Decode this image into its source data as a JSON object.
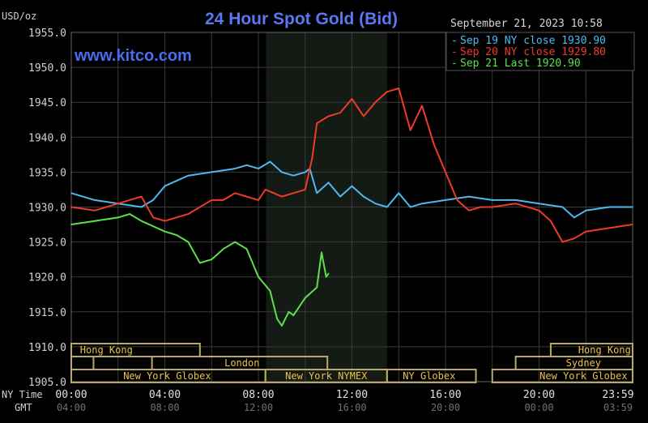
{
  "chart_data": {
    "type": "line",
    "title": "24 Hour Spot Gold (Bid)",
    "watermark": "www.kitco.com",
    "ylabel": "USD/oz",
    "timestamp": "September 21, 2023 10:58",
    "ylim": [
      1905,
      1955
    ],
    "xlim": [
      0,
      24
    ],
    "yticks": [
      "1955.0",
      "1950.0",
      "1945.0",
      "1940.0",
      "1935.0",
      "1930.0",
      "1925.0",
      "1920.0",
      "1915.0",
      "1910.0",
      "1905.0"
    ],
    "x_row_label": "NY Time",
    "x2_row_label": "GMT",
    "xticks": [
      {
        "hour": 0,
        "ny": "00:00",
        "gmt": "04:00"
      },
      {
        "hour": 4,
        "ny": "04:00",
        "gmt": "08:00"
      },
      {
        "hour": 8,
        "ny": "08:00",
        "gmt": "12:00"
      },
      {
        "hour": 12,
        "ny": "12:00",
        "gmt": "16:00"
      },
      {
        "hour": 16,
        "ny": "16:00",
        "gmt": "20:00"
      },
      {
        "hour": 20,
        "ny": "20:00",
        "gmt": "00:00"
      },
      {
        "hour": 24,
        "ny": "23:59",
        "gmt": "03:59"
      }
    ],
    "highlight_hours": [
      8.33,
      13.5
    ],
    "series": [
      {
        "name": "Sep 19 NY close 1930.90",
        "color": "#4fb8f0",
        "x": [
          0,
          1,
          2,
          3,
          3.5,
          4,
          5,
          6,
          7,
          7.5,
          8,
          8.5,
          9,
          9.5,
          10,
          10.2,
          10.5,
          11,
          11.5,
          12,
          12.5,
          13,
          13.5,
          14,
          14.5,
          15,
          16,
          17,
          18,
          19,
          20,
          21,
          21.5,
          22,
          23,
          24
        ],
        "y": [
          1932,
          1931,
          1930.5,
          1930,
          1931,
          1933,
          1934.5,
          1935,
          1935.5,
          1936,
          1935.5,
          1936.5,
          1935,
          1934.5,
          1935,
          1935.5,
          1932,
          1933.5,
          1931.5,
          1933,
          1931.5,
          1930.5,
          1930,
          1932,
          1930,
          1930.5,
          1931,
          1931.5,
          1931,
          1931,
          1930.5,
          1930,
          1928.5,
          1929.5,
          1930,
          1930
        ]
      },
      {
        "name": "Sep 20 NY close 1929.80",
        "color": "#f03a2a",
        "x": [
          0,
          1,
          2,
          3,
          3.5,
          4,
          5,
          6,
          6.5,
          7,
          8,
          8.3,
          9,
          9.5,
          10,
          10.3,
          10.5,
          11,
          11.5,
          12,
          12.5,
          13,
          13.5,
          14,
          14.5,
          15,
          15.5,
          16,
          16.5,
          17,
          17.5,
          18,
          19,
          20,
          20.5,
          21,
          21.5,
          22,
          23,
          24
        ],
        "y": [
          1930,
          1929.5,
          1930.5,
          1931.5,
          1928.5,
          1928,
          1929,
          1931,
          1931,
          1932,
          1931,
          1932.5,
          1931.5,
          1932,
          1932.5,
          1937,
          1942,
          1943,
          1943.5,
          1945.5,
          1943,
          1945,
          1946.5,
          1947,
          1941,
          1944.5,
          1939,
          1935,
          1931,
          1929.5,
          1930,
          1930,
          1930.5,
          1929.5,
          1928,
          1925,
          1925.5,
          1926.5,
          1927,
          1927.5
        ]
      },
      {
        "name": "Sep 21 Last 1920.90",
        "color": "#5ee04a",
        "x": [
          0,
          1,
          2,
          2.5,
          3,
          4,
          4.5,
          5,
          5.5,
          6,
          6.5,
          7,
          7.5,
          8,
          8.5,
          8.8,
          9,
          9.3,
          9.5,
          10,
          10.5,
          10.7,
          10.9,
          11
        ],
        "y": [
          1927.5,
          1928,
          1928.5,
          1929,
          1928,
          1926.5,
          1926,
          1925,
          1922,
          1922.5,
          1924,
          1925,
          1924,
          1920,
          1918,
          1914,
          1913,
          1915,
          1914.5,
          1917,
          1918.5,
          1923.5,
          1920,
          1920.5
        ]
      }
    ],
    "sessions": [
      {
        "label": "Hong Kong",
        "row": 0,
        "start": 0,
        "end": 5.5,
        "label_at": 1.5
      },
      {
        "label": "Hong Kong",
        "row": 0,
        "start": 20.5,
        "end": 24,
        "label_at": 22.8
      },
      {
        "label": "",
        "row": 1,
        "start": 0,
        "end": 0.95
      },
      {
        "label": "London",
        "row": 1,
        "start": 3.45,
        "end": 10.95,
        "label_at": 7.3
      },
      {
        "label": "Sydney",
        "row": 1,
        "start": 19,
        "end": 24,
        "label_at": 21.9
      },
      {
        "label": "New York Globex",
        "row": 2,
        "start": 0,
        "end": 8.3,
        "label_at": 4.1
      },
      {
        "label": "New York NYMEX",
        "row": 2,
        "start": 8.3,
        "end": 13.5,
        "label_at": 10.9
      },
      {
        "label": "NY Globex",
        "row": 2,
        "start": 13.5,
        "end": 17.3,
        "label_at": 15.3
      },
      {
        "label": "New York Globex",
        "row": 2,
        "start": 18,
        "end": 24,
        "label_at": 21.9
      }
    ]
  }
}
